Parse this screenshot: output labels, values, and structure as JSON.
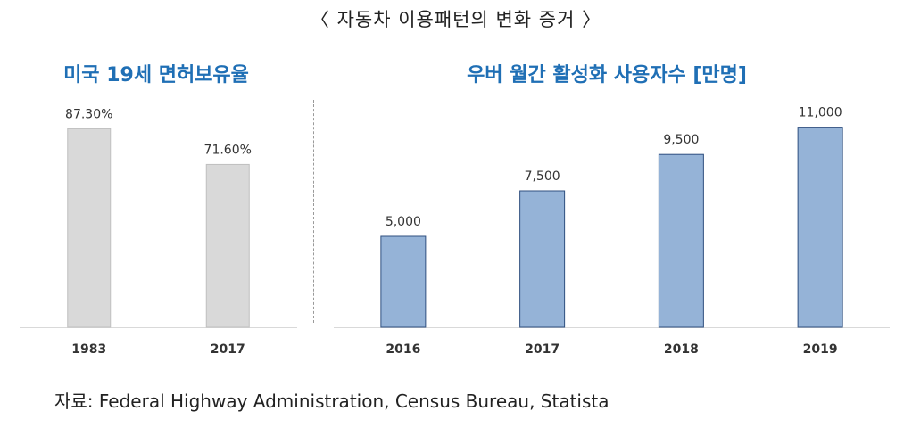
{
  "header": {
    "title": "〈 자동차 이용패턴의 변화 증거 〉"
  },
  "source": "자료: Federal Highway Administration, Census Bureau, Statista",
  "chart_data": [
    {
      "type": "bar",
      "title": "미국 19세 면허보유율",
      "categories": [
        "1983",
        "2017"
      ],
      "values": [
        87.3,
        71.6
      ],
      "value_labels": [
        "87.30%",
        "71.60%"
      ],
      "ylim": [
        0,
        100
      ],
      "colors": {
        "bar": "#d9d9d9",
        "bar_border": "#bfbfbf"
      },
      "grid": false,
      "legend": "none"
    },
    {
      "type": "bar",
      "title": "우버 월간 활성화 사용자수 [만명]",
      "categories": [
        "2016",
        "2017",
        "2018",
        "2019"
      ],
      "values": [
        5000,
        7500,
        9500,
        11000
      ],
      "value_labels": [
        "5,000",
        "7,500",
        "9,500",
        "11,000"
      ],
      "ylim": [
        0,
        12500
      ],
      "colors": {
        "bar": "#95b3d7",
        "bar_border": "#2f4f7f"
      },
      "grid": false,
      "legend": "none"
    }
  ]
}
